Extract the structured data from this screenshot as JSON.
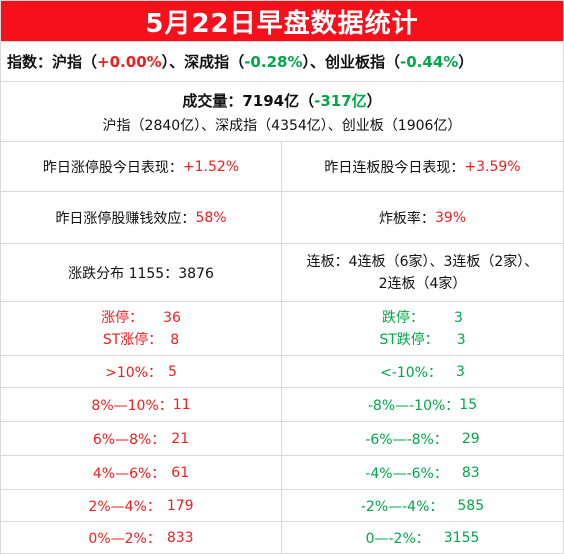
{
  "title": "5月22日早盘数据统计",
  "indices": {
    "label": "指数：",
    "sh_name": "沪指",
    "sh_open": "（",
    "sh_value": "+0.00%",
    "sh_close": "）、",
    "sz_name": "深成指",
    "sz_open": "（",
    "sz_value": "-0.28%",
    "sz_close": "）、",
    "cy_name": "创业板指",
    "cy_open": "（",
    "cy_value": "-0.44%",
    "cy_close": "）"
  },
  "volume": {
    "label": "成交量：",
    "amount": "7194亿",
    "open": "（",
    "change": "-317亿",
    "close": "）",
    "breakdown": "沪指（2840亿）、深成指（4354亿）、创业板（1906亿）"
  },
  "stats": {
    "limit_up_today_label": "昨日涨停股今日表现：",
    "limit_up_today_value": "+1.52%",
    "consec_board_today_label": "昨日连板股今日表现：",
    "consec_board_today_value": "+3.59%",
    "profit_effect_label": "昨日涨停股赚钱效应：",
    "profit_effect_value": "58%",
    "broken_board_label": "炸板率：",
    "broken_board_value": "39%",
    "distribution": "涨跌分布 1155：3876",
    "consec_line1": "连板：4连板（6家）、3连板（2家）、",
    "consec_line2": "2连板（4家）"
  },
  "limits": {
    "up_label": "涨停：",
    "up_value": "36",
    "st_up_label": "ST涨停：",
    "st_up_value": "8",
    "down_label": "跌停：",
    "down_value": "3",
    "st_down_label": "ST跌停：",
    "st_down_value": "3"
  },
  "buckets": [
    {
      "up_label": ">10%：",
      "up_value": "5",
      "down_label": "<-10%：",
      "down_value": "3"
    },
    {
      "up_label": "8%—10%：",
      "up_value": "11",
      "down_label": "-8%—-10%：",
      "down_value": "15"
    },
    {
      "up_label": "6%—8%：",
      "up_value": "21",
      "down_label": "-6%—-8%：",
      "down_value": "29"
    },
    {
      "up_label": "4%—6%：",
      "up_value": "61",
      "down_label": "-4%—-6%：",
      "down_value": "83"
    },
    {
      "up_label": "2%—4%：",
      "up_value": "179",
      "down_label": "-2%—-4%：",
      "down_value": "585"
    },
    {
      "up_label": "0%—2%：",
      "up_value": "833",
      "down_label": "0—-2%：",
      "down_value": "3155"
    }
  ],
  "colors": {
    "header_bg": "#f5101b",
    "up": "#ee1f1f",
    "down": "#00a84a",
    "grid": "#d9d9d9"
  }
}
